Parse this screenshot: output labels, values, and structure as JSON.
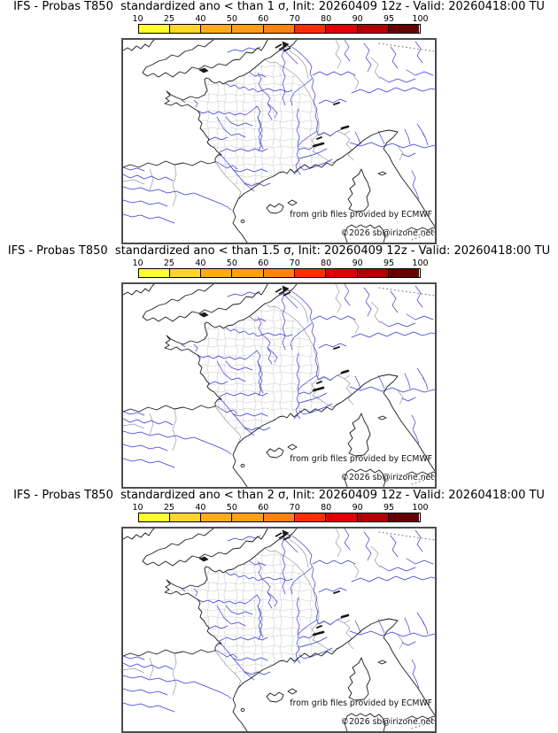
{
  "window": {
    "background": "#ffffff"
  },
  "panels": [
    {
      "title": "IFS - Probas T850  standardized ano < than 1 σ, Init: 20260409 12z - Valid: 20260418:00 TU"
    },
    {
      "title": "IFS - Probas T850  standardized ano < than 1.5 σ, Init: 20260409 12z - Valid: 20260418:00 TU"
    },
    {
      "title": "IFS - Probas T850  standardized ano < than 2 σ, Init: 20260409 12z - Valid: 20260418:00 TU"
    }
  ],
  "colorbar": {
    "tick_labels": [
      "10",
      "25",
      "40",
      "50",
      "60",
      "70",
      "80",
      "90",
      "95",
      "100"
    ],
    "segment_colors": [
      "#ffff2f",
      "#ffd52d",
      "#ffab1d",
      "#ff9e19",
      "#ff8312",
      "#ff2e00",
      "#e00005",
      "#b00004",
      "#660002"
    ],
    "border_color": "#000000"
  },
  "map": {
    "credit_line1": "from grib files provided by ECMWF",
    "credit_line2": "©2026 sb@irizone.net",
    "colors": {
      "coastline": "#1a1a1a",
      "rivers": "#3a3ad6",
      "country_borders": "#9a9a9a",
      "department_borders": "#c8c8c8",
      "frame": "#4d4d4d"
    }
  }
}
